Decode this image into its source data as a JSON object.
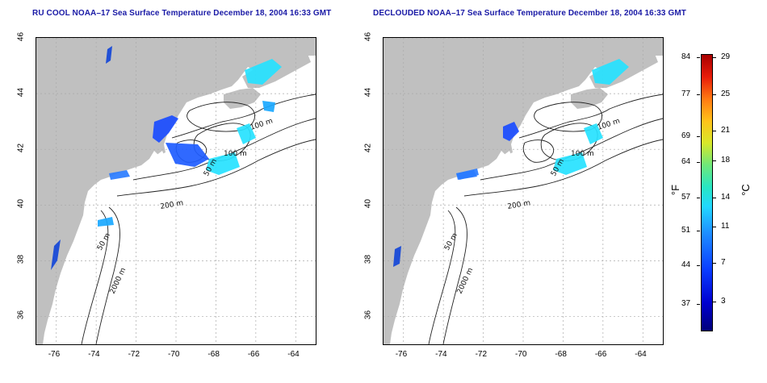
{
  "panels": [
    {
      "title": "RU COOL NOAA–17 Sea Surface Temperature December 18, 2004 16:33 GMT"
    },
    {
      "title": "DECLOUDED NOAA–17 Sea Surface Temperature December 18, 2004 16:33 GMT"
    }
  ],
  "axes": {
    "x_ticks": [
      "-76",
      "-74",
      "-72",
      "-70",
      "-68",
      "-66",
      "-64"
    ],
    "y_ticks": [
      "46",
      "44",
      "42",
      "40",
      "38",
      "36"
    ]
  },
  "contour_labels": [
    "100 m",
    "100 m",
    "50 m",
    "200 m",
    "50 m",
    "2000 m"
  ],
  "colorbar": {
    "fahrenheit": [
      "84",
      "77",
      "69",
      "64",
      "57",
      "51",
      "44",
      "37"
    ],
    "celsius": [
      "29",
      "25",
      "21",
      "18",
      "14",
      "11",
      "7",
      "3"
    ],
    "unit_f": "°F",
    "unit_c": "°C"
  },
  "colors": {
    "land": "#c0c0c0",
    "title": "#1a1aa6",
    "cold": "#1a4cff",
    "cyan": "#26e2ff"
  }
}
